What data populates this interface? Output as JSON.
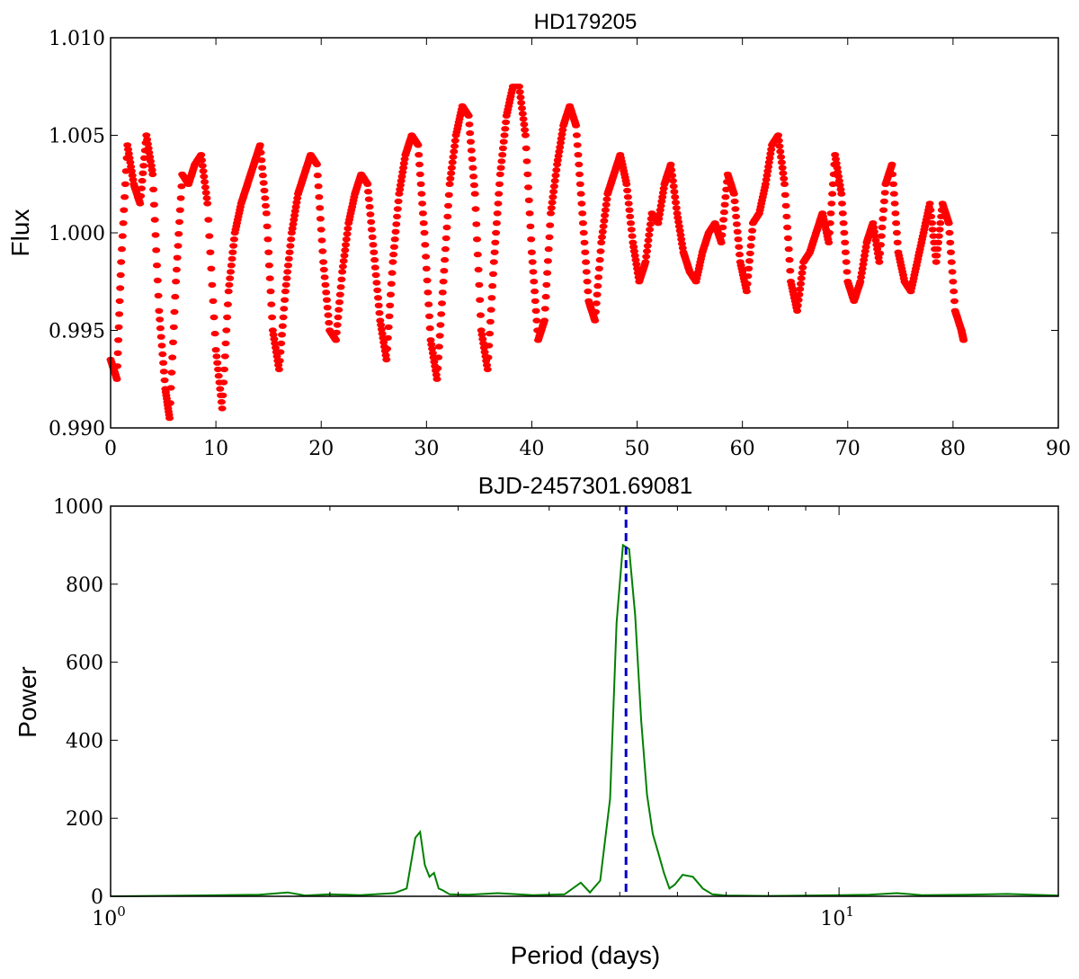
{
  "chart_data": [
    {
      "type": "scatter",
      "title": "HD179205",
      "xlabel": "BJD-2457301.69081",
      "ylabel": "Flux",
      "xlim": [
        0,
        90
      ],
      "ylim": [
        0.99,
        1.01
      ],
      "x_ticks": [
        "0",
        "10",
        "20",
        "30",
        "40",
        "50",
        "60",
        "70",
        "80",
        "90"
      ],
      "y_ticks": [
        "0.990",
        "0.995",
        "1.000",
        "1.005",
        "1.010"
      ],
      "grid": false,
      "color": "#ff0000",
      "series": [
        {
          "x": [
            0.0,
            0.6,
            1.0,
            1.6,
            2.2,
            2.8,
            3.4,
            4.0,
            4.6,
            5.2,
            5.6,
            6.2,
            6.8,
            7.4,
            8.0,
            8.6,
            9.2,
            10.0,
            10.6,
            11.2,
            11.8,
            12.4,
            13.0,
            13.6,
            14.2,
            14.8,
            15.4,
            16.0,
            16.6,
            17.2,
            17.8,
            18.4,
            19.0,
            19.6,
            20.2,
            20.8,
            21.4,
            22.0,
            22.6,
            23.2,
            23.8,
            24.4,
            25.0,
            25.6,
            26.2,
            26.8,
            27.4,
            28.0,
            28.6,
            29.2,
            29.8,
            30.4,
            31.0,
            31.6,
            32.2,
            32.8,
            33.4,
            34.0,
            34.6,
            35.2,
            35.8,
            36.4,
            37.0,
            37.6,
            38.2,
            38.8,
            39.4,
            40.0,
            40.6,
            41.2,
            41.8,
            42.4,
            43.0,
            43.6,
            44.2,
            44.8,
            45.4,
            46.0,
            46.6,
            47.2,
            47.8,
            48.4,
            49.0,
            49.6,
            50.2,
            50.8,
            51.4,
            52.0,
            52.6,
            53.2,
            53.8,
            54.4,
            55.0,
            55.6,
            56.2,
            56.8,
            57.4,
            58.0,
            58.6,
            59.2,
            59.8,
            60.4,
            61.0,
            61.6,
            62.2,
            62.8,
            63.4,
            64.0,
            64.6,
            65.2,
            65.8,
            66.4,
            67.0,
            67.6,
            68.2,
            68.8,
            69.4,
            70.0,
            70.6,
            71.2,
            71.8,
            72.4,
            73.0,
            73.6,
            74.2,
            74.8,
            75.4,
            76.0,
            76.6,
            77.2,
            77.8,
            78.4,
            79.0,
            79.6,
            80.2,
            80.8,
            81.0
          ],
          "y": [
            0.9935,
            0.9925,
            0.9985,
            1.0045,
            1.0025,
            1.0015,
            1.005,
            1.003,
            0.996,
            0.992,
            0.9905,
            0.9975,
            1.003,
            1.0025,
            1.0035,
            1.004,
            1.0015,
            0.994,
            0.991,
            0.997,
            1.0,
            1.0015,
            1.0025,
            1.0035,
            1.0045,
            1.001,
            0.995,
            0.993,
            0.997,
            1.0,
            1.002,
            1.003,
            1.004,
            1.0035,
            0.9985,
            0.995,
            0.9945,
            0.998,
            1.0005,
            1.002,
            1.003,
            1.0025,
            0.999,
            0.9955,
            0.9935,
            0.9985,
            1.002,
            1.004,
            1.005,
            1.0045,
            1.0,
            0.9945,
            0.9925,
            0.9975,
            1.0025,
            1.005,
            1.0065,
            1.006,
            1.002,
            0.995,
            0.993,
            0.9985,
            1.003,
            1.006,
            1.0075,
            1.0075,
            1.005,
            0.999,
            0.9945,
            0.9955,
            1.001,
            1.0035,
            1.0055,
            1.0065,
            1.0055,
            1.001,
            0.9965,
            0.9955,
            0.9995,
            1.002,
            1.003,
            1.004,
            1.0025,
            0.9995,
            0.9975,
            0.9985,
            1.001,
            1.0005,
            1.0025,
            1.0035,
            1.001,
            0.999,
            0.998,
            0.9975,
            0.999,
            1.0,
            1.0005,
            0.9995,
            1.003,
            1.002,
            0.9985,
            0.997,
            1.0005,
            1.001,
            1.0025,
            1.0045,
            1.005,
            1.0025,
            0.9975,
            0.996,
            0.9985,
            0.999,
            1.0,
            1.001,
            0.9995,
            1.004,
            1.002,
            0.9975,
            0.9965,
            0.9975,
            0.9995,
            1.0005,
            0.9985,
            1.0025,
            1.0035,
            0.999,
            0.9975,
            0.997,
            0.9985,
            1.0,
            1.0015,
            0.9985,
            1.0015,
            1.0005,
            0.996,
            0.995,
            0.9945
          ]
        }
      ]
    },
    {
      "type": "line",
      "title": "",
      "xlabel": "Period (days)",
      "ylabel": "Power",
      "xscale": "log",
      "xlim": [
        1.0,
        20.0
      ],
      "ylim": [
        0,
        1000
      ],
      "x_ticks": [
        {
          "base": "10",
          "exp": "0",
          "value": 1
        },
        {
          "base": "10",
          "exp": "1",
          "value": 10
        }
      ],
      "y_ticks": [
        "0",
        "200",
        "400",
        "600",
        "800",
        "1000"
      ],
      "grid": false,
      "color": "#008000",
      "marker_line": {
        "x": 5.1,
        "color": "#0000cc",
        "style": "dashed"
      },
      "series": [
        {
          "x": [
            1.0,
            1.3,
            1.6,
            1.75,
            1.85,
            2.0,
            2.2,
            2.45,
            2.55,
            2.62,
            2.66,
            2.7,
            2.74,
            2.78,
            2.82,
            2.86,
            2.92,
            3.1,
            3.4,
            3.8,
            4.2,
            4.42,
            4.55,
            4.7,
            4.85,
            4.95,
            5.05,
            5.15,
            5.25,
            5.35,
            5.45,
            5.55,
            5.65,
            5.75,
            5.85,
            5.95,
            6.1,
            6.3,
            6.5,
            6.7,
            7.0,
            8.0,
            10.0,
            11.0,
            12.0,
            13.0,
            15.0,
            17.0,
            20.0
          ],
          "y": [
            0,
            2,
            4,
            10,
            2,
            5,
            3,
            8,
            20,
            150,
            165,
            80,
            50,
            60,
            20,
            15,
            5,
            4,
            8,
            3,
            5,
            35,
            10,
            40,
            250,
            700,
            900,
            890,
            720,
            450,
            260,
            160,
            110,
            60,
            20,
            30,
            55,
            50,
            20,
            5,
            2,
            1,
            3,
            4,
            8,
            3,
            4,
            6,
            2
          ]
        }
      ]
    }
  ]
}
